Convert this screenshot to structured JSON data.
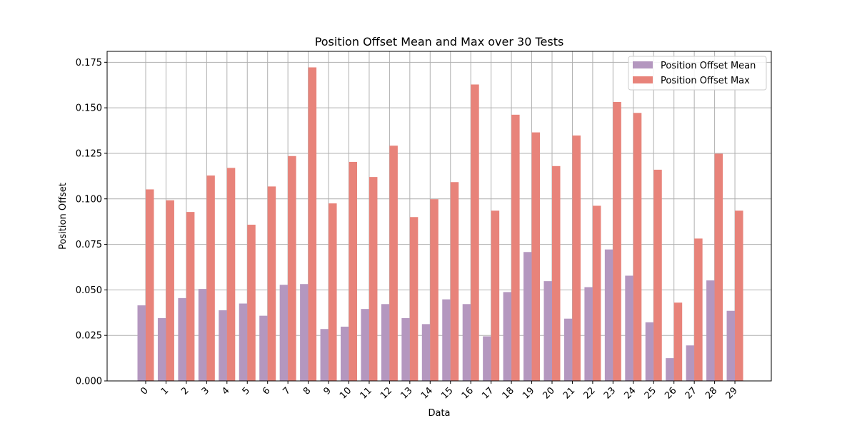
{
  "chart_data": {
    "type": "bar",
    "title": "Position Offset Mean and Max over 30 Tests",
    "xlabel": "Data",
    "ylabel": "Position Offset",
    "categories": [
      "0",
      "1",
      "2",
      "3",
      "4",
      "5",
      "6",
      "7",
      "8",
      "9",
      "10",
      "11",
      "12",
      "13",
      "14",
      "15",
      "16",
      "17",
      "18",
      "19",
      "20",
      "21",
      "22",
      "23",
      "24",
      "25",
      "26",
      "27",
      "28",
      "29"
    ],
    "series": [
      {
        "name": "Position Offset Mean",
        "color": "#b497bf",
        "values": [
          0.0415,
          0.0345,
          0.0455,
          0.0505,
          0.0388,
          0.0425,
          0.0358,
          0.0528,
          0.0532,
          0.0285,
          0.0298,
          0.0395,
          0.0422,
          0.0345,
          0.0312,
          0.0448,
          0.0422,
          0.0245,
          0.0488,
          0.0708,
          0.0548,
          0.0342,
          0.0515,
          0.0722,
          0.0578,
          0.0322,
          0.0125,
          0.0195,
          0.0552,
          0.0385
        ]
      },
      {
        "name": "Position Offset Max",
        "color": "#e8837a",
        "values": [
          0.1052,
          0.0992,
          0.0928,
          0.1128,
          0.117,
          0.0858,
          0.1068,
          0.1235,
          0.1722,
          0.0975,
          0.1203,
          0.112,
          0.1292,
          0.09,
          0.0998,
          0.1092,
          0.1628,
          0.0935,
          0.1462,
          0.1365,
          0.118,
          0.1348,
          0.0962,
          0.1532,
          0.1472,
          0.116,
          0.043,
          0.0782,
          0.1248,
          0.0935
        ]
      }
    ],
    "ylim": [
      0,
      0.181
    ],
    "yticks": [
      "0.000",
      "0.025",
      "0.050",
      "0.075",
      "0.100",
      "0.125",
      "0.150",
      "0.175"
    ],
    "ytick_values": [
      0,
      0.025,
      0.05,
      0.075,
      0.1,
      0.125,
      0.15,
      0.175
    ],
    "grid": true,
    "legend_position": "top-right"
  }
}
